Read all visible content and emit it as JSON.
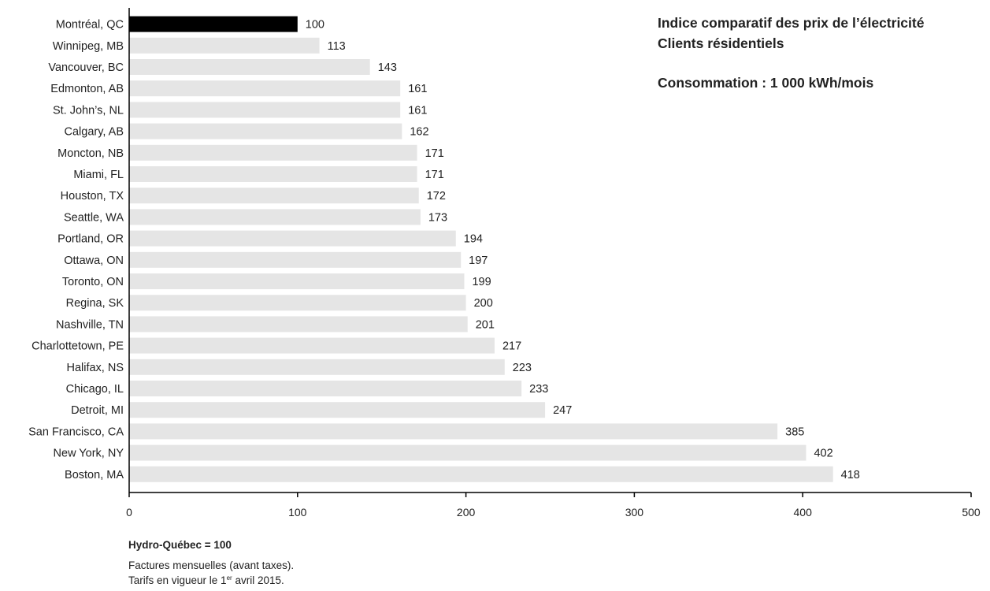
{
  "chart_data": {
    "type": "bar",
    "orientation": "horizontal",
    "title": "Indice comparatif des prix de l’électricité",
    "subtitle_line1": "Clients résidentiels",
    "subtitle_line2": "Consommation : 1 000 kWh/mois",
    "xlim": [
      0,
      500
    ],
    "xticks": [
      0,
      100,
      200,
      300,
      400,
      500
    ],
    "categories": [
      "Montréal, QC",
      "Winnipeg, MB",
      "Vancouver, BC",
      "Edmonton, AB",
      "St. John’s, NL",
      "Calgary, AB",
      "Moncton, NB",
      "Miami, FL",
      "Houston, TX",
      "Seattle, WA",
      "Portland, OR",
      "Ottawa, ON",
      "Toronto, ON",
      "Regina, SK",
      "Nashville, TN",
      "Charlottetown, PE",
      "Halifax, NS",
      "Chicago, IL",
      "Detroit, MI",
      "San Francisco, CA",
      "New York, NY",
      "Boston, MA"
    ],
    "values": [
      100,
      113,
      143,
      161,
      161,
      162,
      171,
      171,
      172,
      173,
      194,
      197,
      199,
      200,
      201,
      217,
      223,
      233,
      247,
      385,
      402,
      418
    ],
    "highlight_category": "Montréal, QC",
    "colors": {
      "highlight": "#000000",
      "bar": "#e5e5e5",
      "axis": "#000000",
      "text": "#222222"
    },
    "grid": false,
    "legend": "none"
  },
  "notes": {
    "base": "Hydro-Québec = 100",
    "line1": "Factures mensuelles (avant taxes).",
    "line2_pre": "Tarifs en vigueur le 1",
    "line2_sup": "er",
    "line2_post": " avril 2015."
  }
}
